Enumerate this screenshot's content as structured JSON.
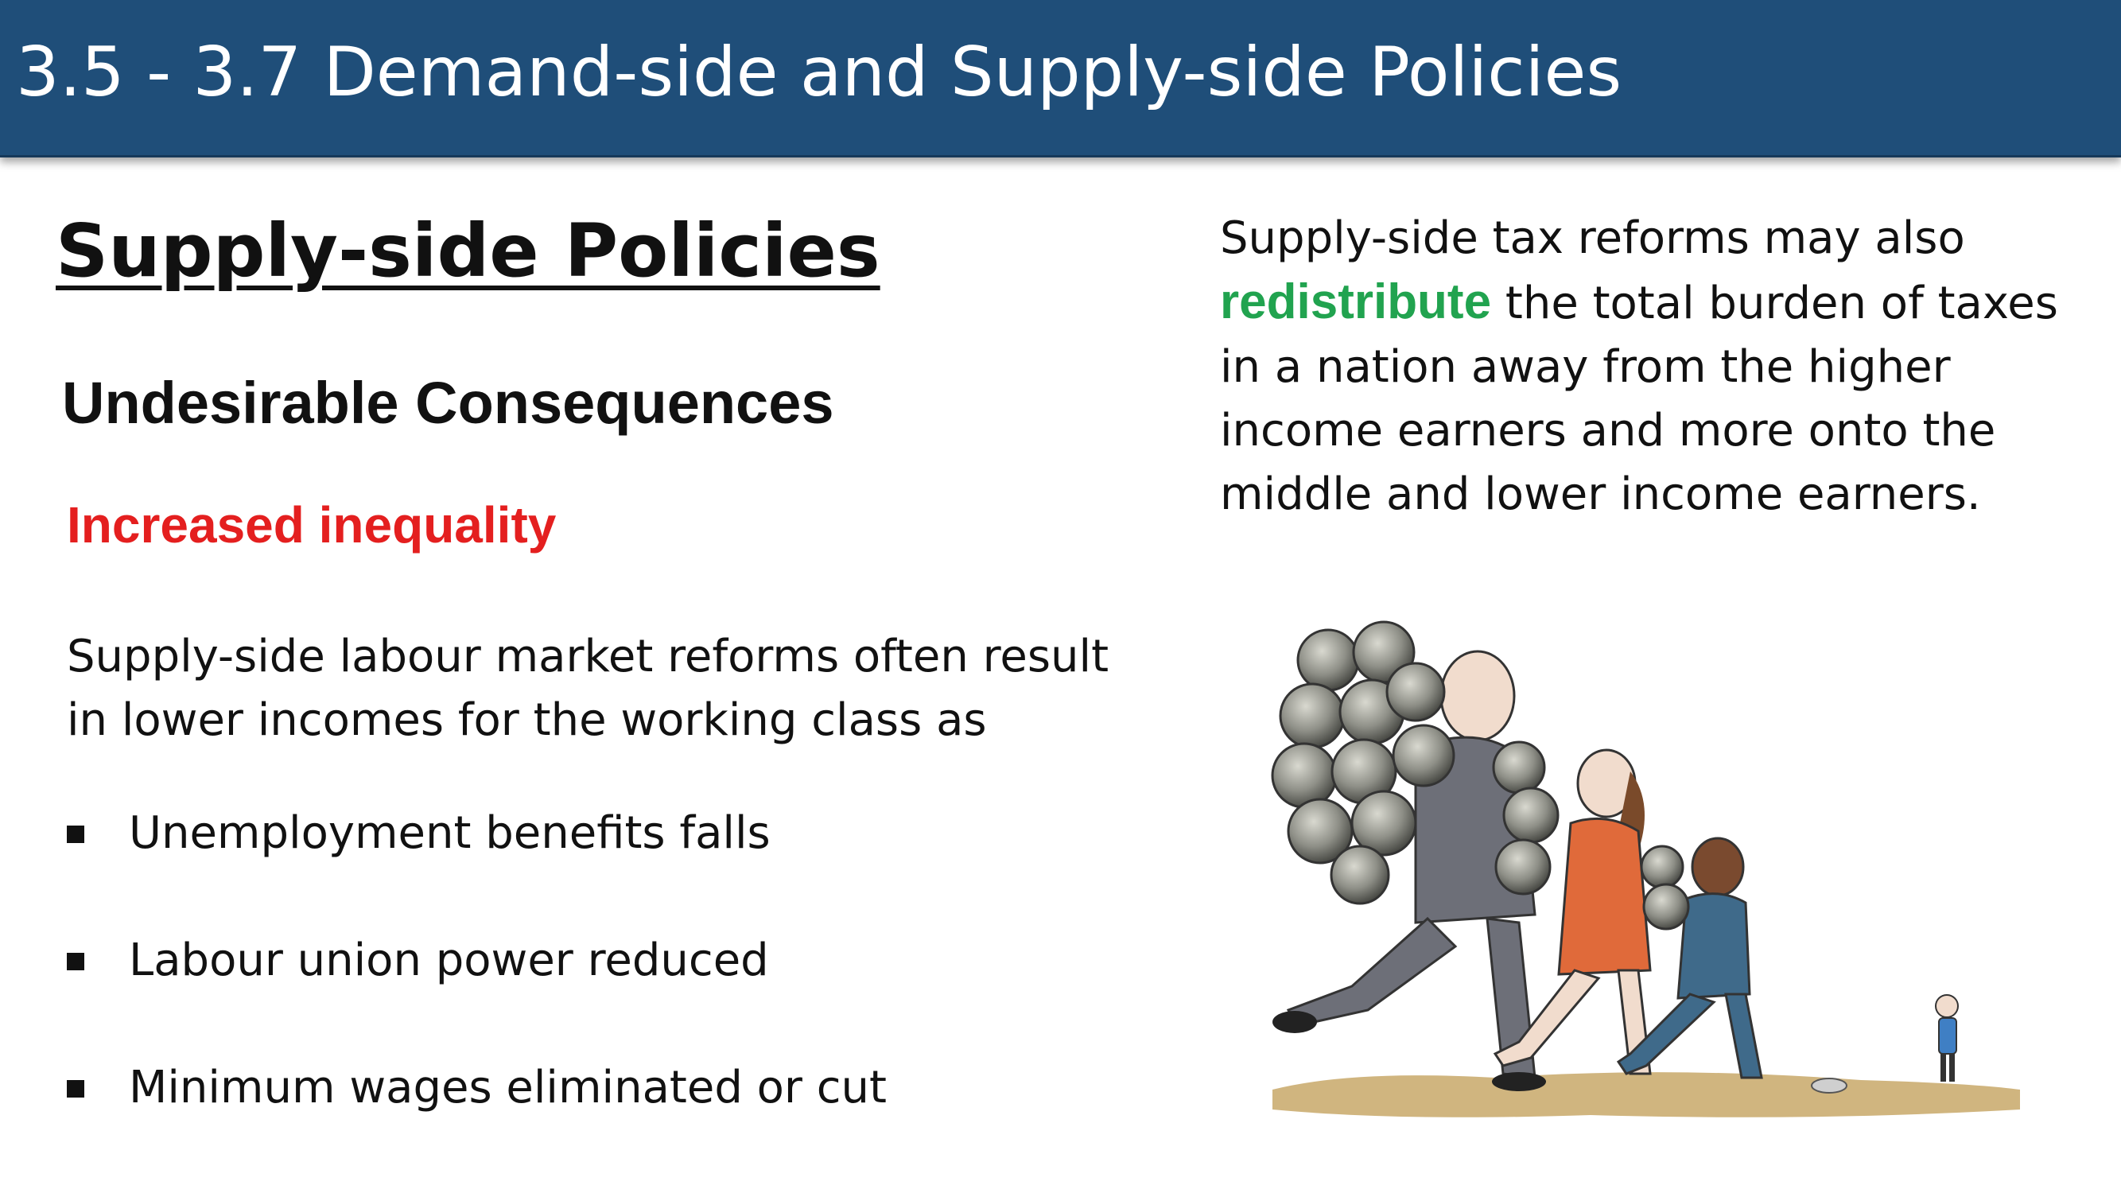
{
  "header": {
    "title": "3.5 - 3.7 Demand-side and Supply-side Policies"
  },
  "main": {
    "section_title": "Supply-side Policies",
    "subsection_title": "Undesirable Consequences",
    "highlight": "Increased inequality",
    "paragraph": "Supply-side labour market reforms often result in lower incomes for the working class as",
    "bullets": [
      "Unemployment benefits falls",
      "Labour union power reduced",
      "Minimum wages eliminated or cut"
    ]
  },
  "right": {
    "text_before": "Supply-side tax reforms may also",
    "highlight_word": "redistribute",
    "text_after": "the total burden of taxes in a nation away from the higher income earners and more onto the middle and lower income earners."
  },
  "colors": {
    "header_bg": "#1f4e79",
    "highlight_red": "#e41f1f",
    "highlight_green": "#21a34f"
  },
  "illustration": {
    "description_icon": "people-carrying-coins-illustration"
  }
}
